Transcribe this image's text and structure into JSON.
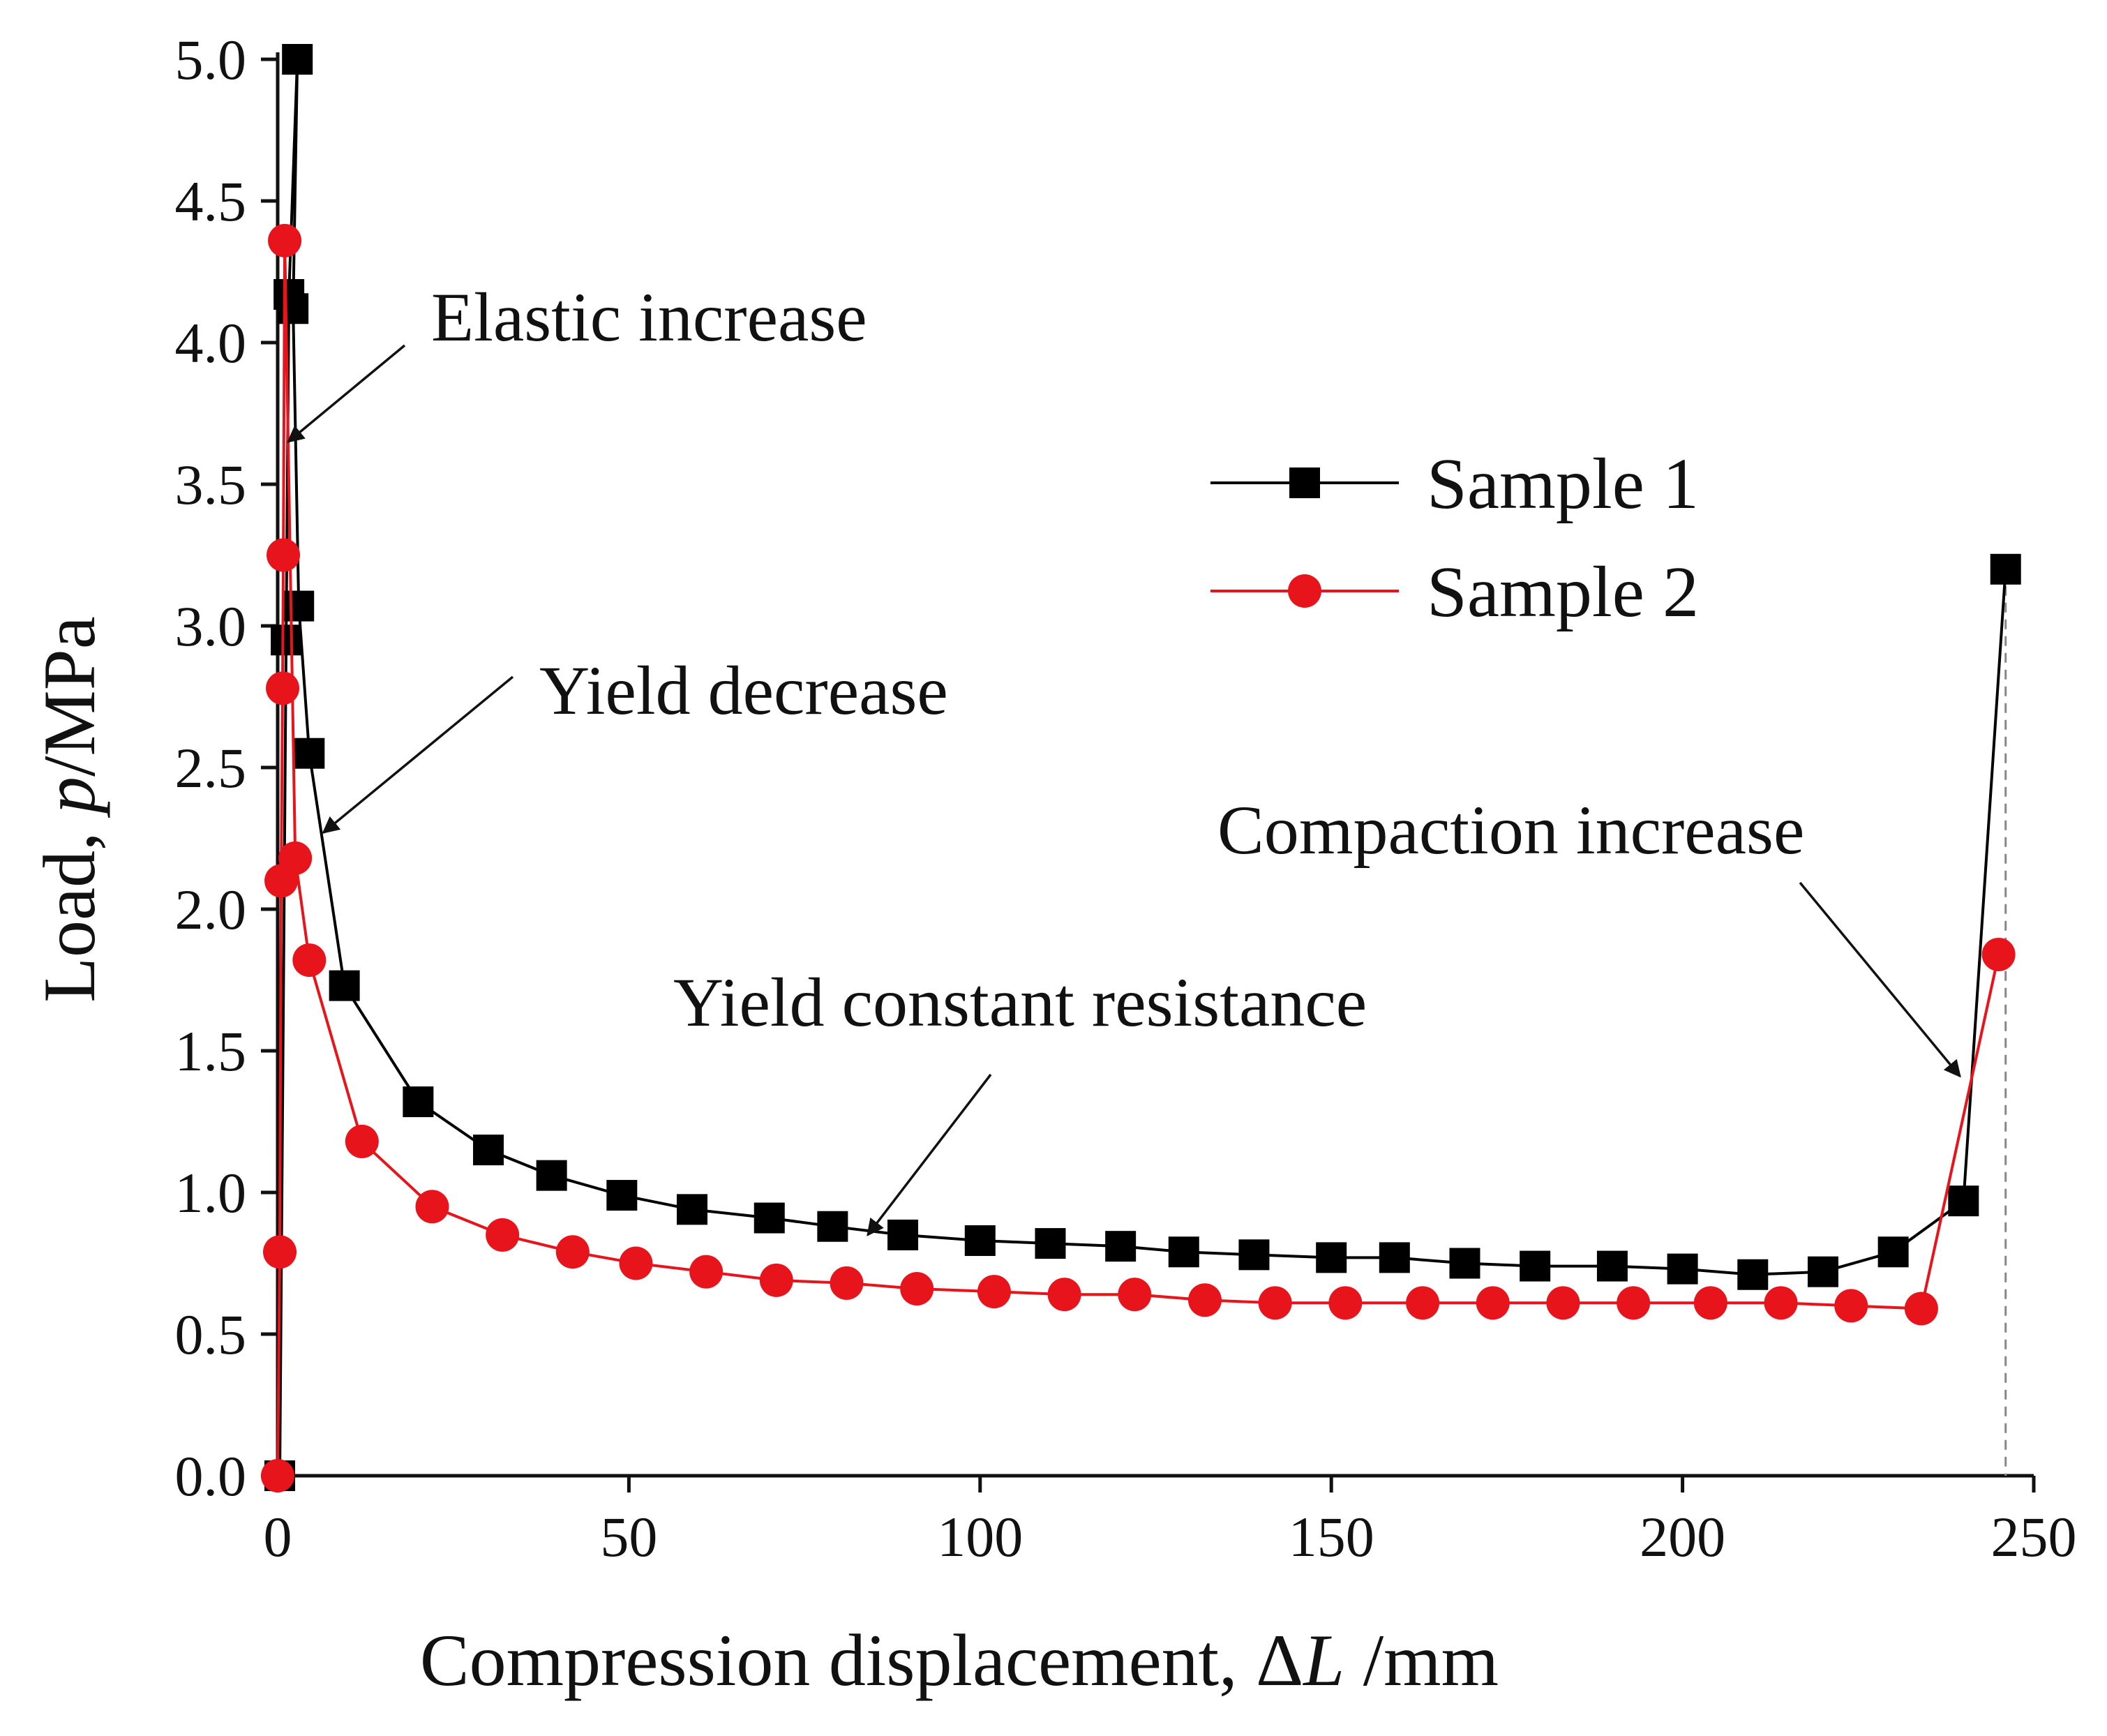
{
  "chart_data": {
    "type": "line",
    "xlabel": {
      "prefix": "Compression displacement, ",
      "symbol": "Δ",
      "var": "L",
      "suffix": " /mm"
    },
    "ylabel": {
      "prefix": "Load, ",
      "var": "p",
      "suffix": "/MPa"
    },
    "xlim": [
      0,
      250
    ],
    "ylim": [
      0,
      5.0
    ],
    "x_ticks": [
      0,
      50,
      100,
      150,
      200,
      250
    ],
    "x_tick_labels": [
      "0",
      "50",
      "100",
      "150",
      "200",
      "250"
    ],
    "y_ticks": [
      0,
      0.5,
      1.0,
      1.5,
      2.0,
      2.5,
      3.0,
      3.5,
      4.0,
      4.5,
      5.0
    ],
    "y_tick_labels": [
      "0.0",
      "0.5",
      "1.0",
      "1.5",
      "2.0",
      "2.5",
      "3.0",
      "3.5",
      "4.0",
      "4.5",
      "5.0"
    ],
    "grid": false,
    "legend_position": "upper-right",
    "series": [
      {
        "name": "Sample 1",
        "color": "#000000",
        "marker": "square",
        "x": [
          0.3,
          1.2,
          1.6,
          2.8,
          2.2,
          3.0,
          4.5,
          9.5,
          20,
          30,
          39,
          49,
          59,
          70,
          79,
          89,
          100,
          110,
          120,
          129,
          139,
          150,
          159,
          169,
          179,
          190,
          200,
          210,
          220,
          230,
          240,
          246
        ],
        "y": [
          0.0,
          2.95,
          4.17,
          5.0,
          4.12,
          3.07,
          2.55,
          1.73,
          1.32,
          1.15,
          1.06,
          0.99,
          0.94,
          0.91,
          0.88,
          0.85,
          0.83,
          0.82,
          0.81,
          0.79,
          0.78,
          0.77,
          0.77,
          0.75,
          0.74,
          0.74,
          0.73,
          0.71,
          0.72,
          0.79,
          0.97,
          3.2
        ]
      },
      {
        "name": "Sample 2",
        "color": "#e8141b",
        "marker": "circle",
        "x": [
          0,
          0.3,
          0.5,
          0.7,
          0.8,
          1.0,
          2.5,
          4.5,
          12,
          22,
          32,
          42,
          51,
          61,
          71,
          81,
          91,
          102,
          112,
          122,
          132,
          142,
          152,
          163,
          173,
          183,
          193,
          204,
          214,
          224,
          234,
          245
        ],
        "y": [
          0.0,
          0.79,
          2.1,
          2.78,
          3.25,
          4.36,
          2.18,
          1.82,
          1.18,
          0.95,
          0.85,
          0.79,
          0.75,
          0.72,
          0.69,
          0.68,
          0.66,
          0.65,
          0.64,
          0.64,
          0.62,
          0.61,
          0.61,
          0.61,
          0.61,
          0.61,
          0.61,
          0.61,
          0.61,
          0.6,
          0.59,
          1.84
        ]
      }
    ],
    "annotations": [
      {
        "text": "Elastic increase",
        "arrow_to": [
          1.5,
          3.65
        ]
      },
      {
        "text": "Yield decrease",
        "arrow_to": [
          6.5,
          2.27
        ]
      },
      {
        "text": "Yield constant resistance",
        "arrow_to": [
          84,
          0.85
        ]
      },
      {
        "text": "Compaction increase",
        "arrow_to": [
          239.5,
          1.41
        ]
      }
    ],
    "reference_line": {
      "x": 246,
      "style": "dashed",
      "color": "#888888"
    }
  }
}
